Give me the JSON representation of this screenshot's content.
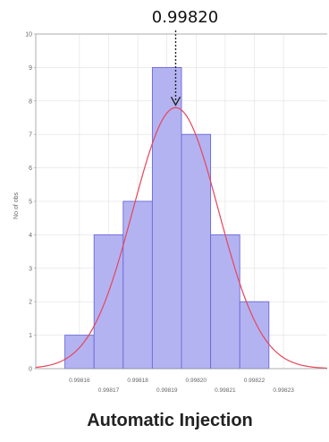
{
  "chart_data": {
    "type": "bar",
    "subtype": "histogram",
    "annotation": "0.99820",
    "caption": "Automatic Injection",
    "ylabel": "No of obs",
    "xlabel": "",
    "ylim": [
      0,
      10
    ],
    "yticks": [
      "0",
      "1",
      "2",
      "3",
      "4",
      "5",
      "6",
      "7",
      "8",
      "9",
      "10"
    ],
    "xlim": [
      0.998145,
      0.998245
    ],
    "xticks_upper": [
      "0.99816",
      "0.99818",
      "0.99820",
      "0.99822"
    ],
    "xticks_lower": [
      "0.99817",
      "0.99819",
      "0.99821",
      "0.99823"
    ],
    "bins": [
      {
        "from": 0.998155,
        "to": 0.998165,
        "value": 1
      },
      {
        "from": 0.998165,
        "to": 0.998175,
        "value": 4
      },
      {
        "from": 0.998175,
        "to": 0.998185,
        "value": 5
      },
      {
        "from": 0.998185,
        "to": 0.998195,
        "value": 9
      },
      {
        "from": 0.998195,
        "to": 0.998205,
        "value": 7
      },
      {
        "from": 0.998205,
        "to": 0.998215,
        "value": 4
      },
      {
        "from": 0.998215,
        "to": 0.998225,
        "value": 2
      }
    ],
    "normal_curve": {
      "mean": 0.998193,
      "sd": 1.47e-05,
      "peak": 7.8
    },
    "arrow_at": 0.998193,
    "grid": true,
    "colors": {
      "bar_fill": "#b3b3f2",
      "bar_stroke": "#6a6ad6",
      "curve": "#e8455a",
      "arrow": "#222222",
      "grid": "#e0e0e0",
      "axis": "#999999"
    }
  }
}
